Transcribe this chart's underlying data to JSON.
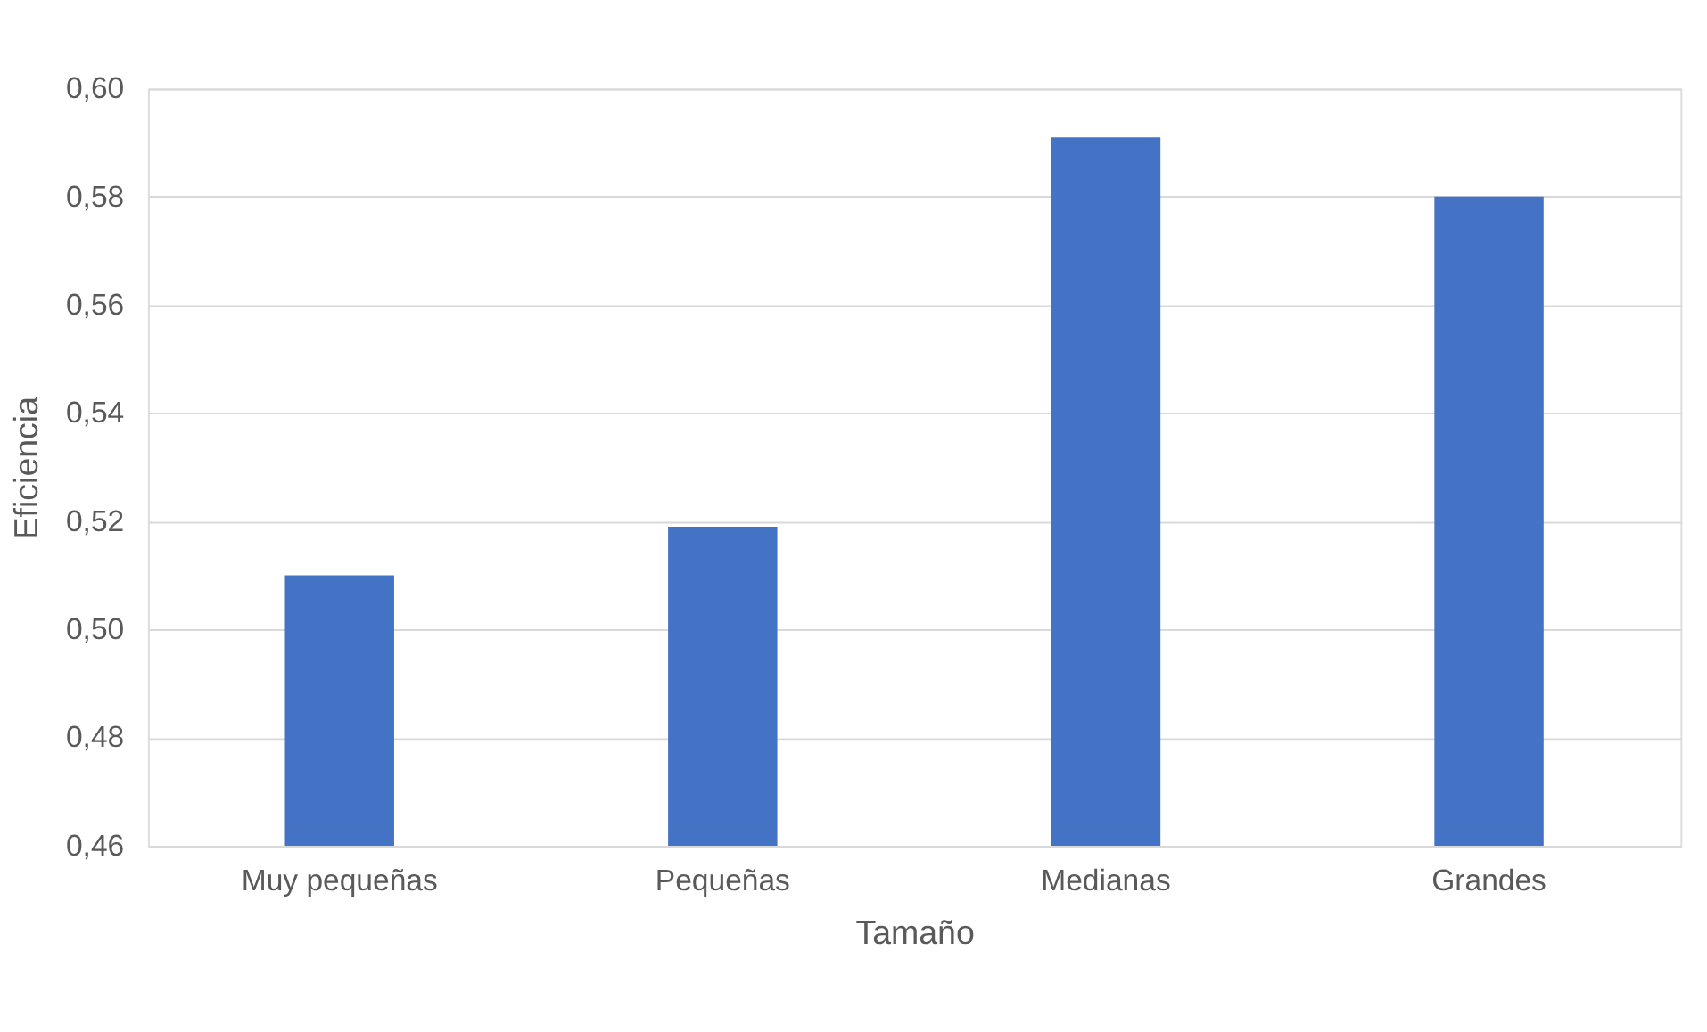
{
  "chart_data": {
    "type": "bar",
    "xlabel": "Tamaño",
    "ylabel": "Eficiencia",
    "categories": [
      "Muy pequeñas",
      "Pequeñas",
      "Medianas",
      "Grandes"
    ],
    "values": [
      0.51,
      0.519,
      0.591,
      0.58
    ],
    "color": "#4472c4",
    "ylim": [
      0.46,
      0.6
    ],
    "yticks": [
      {
        "value": 0.46,
        "label": "0,46"
      },
      {
        "value": 0.48,
        "label": "0,48"
      },
      {
        "value": 0.5,
        "label": "0,50"
      },
      {
        "value": 0.52,
        "label": "0,52"
      },
      {
        "value": 0.54,
        "label": "0,54"
      },
      {
        "value": 0.56,
        "label": "0,56"
      },
      {
        "value": 0.58,
        "label": "0,58"
      },
      {
        "value": 0.6,
        "label": "0,60"
      }
    ],
    "grid": "y"
  }
}
